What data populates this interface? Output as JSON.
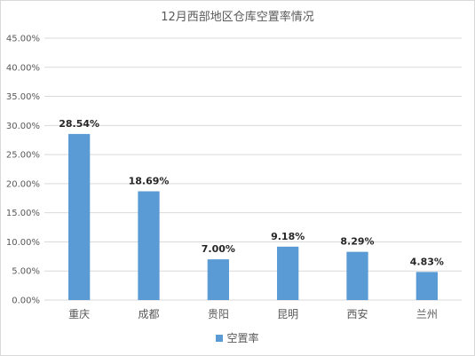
{
  "chart_data": {
    "type": "bar",
    "title": "12月西部地区仓库空置率情况",
    "categories": [
      "重庆",
      "成都",
      "贵阳",
      "昆明",
      "西安",
      "兰州"
    ],
    "series": [
      {
        "name": "空置率",
        "values": [
          28.54,
          18.69,
          7.0,
          9.18,
          8.29,
          4.83
        ],
        "labels": [
          "28.54%",
          "18.69%",
          "7.00%",
          "9.18%",
          "8.29%",
          "4.83%"
        ]
      }
    ],
    "ylim": [
      0,
      45
    ],
    "yticks": [
      0,
      5,
      10,
      15,
      20,
      25,
      30,
      35,
      40,
      45
    ],
    "ytick_labels": [
      "0.00%",
      "5.00%",
      "10.00%",
      "15.00%",
      "20.00%",
      "25.00%",
      "30.00%",
      "35.00%",
      "40.00%",
      "45.00%"
    ],
    "xlabel": "",
    "ylabel": "",
    "grid": true,
    "legend_position": "bottom",
    "bar_color": "#5b9bd5",
    "grid_color": "#d9d9d9"
  }
}
